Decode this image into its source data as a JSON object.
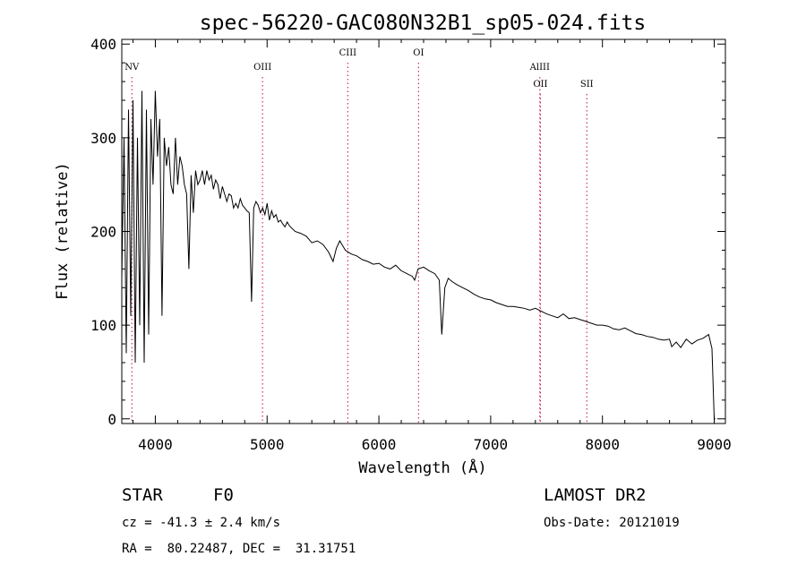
{
  "chart_data": {
    "type": "line",
    "title": "spec-56220-GAC080N32B1_sp05-024.fits",
    "xlabel": "Wavelength (Å)",
    "ylabel": "Flux (relative)",
    "xlim": [
      3700,
      9100
    ],
    "ylim": [
      -5,
      405
    ],
    "x_ticks": [
      4000,
      5000,
      6000,
      7000,
      8000,
      9000
    ],
    "y_ticks": [
      0,
      100,
      200,
      300,
      400
    ],
    "grid": false,
    "line_color": "#000000",
    "line_marker_color": "#cc3355",
    "series": [
      {
        "x": [
          3700,
          3720,
          3740,
          3760,
          3780,
          3800,
          3820,
          3840,
          3860,
          3880,
          3900,
          3920,
          3940,
          3960,
          3980,
          4000,
          4020,
          4040,
          4060,
          4080,
          4100,
          4120,
          4140,
          4160,
          4180,
          4200,
          4220,
          4240,
          4260,
          4280,
          4300,
          4320,
          4340,
          4360,
          4380,
          4400,
          4420,
          4440,
          4460,
          4480,
          4500,
          4520,
          4540,
          4560,
          4580,
          4600,
          4620,
          4640,
          4660,
          4680,
          4700,
          4720,
          4740,
          4760,
          4780,
          4800,
          4820,
          4840,
          4861,
          4880,
          4900,
          4920,
          4940,
          4960,
          4980,
          5000,
          5020,
          5040,
          5060,
          5080,
          5100,
          5120,
          5140,
          5160,
          5180,
          5200,
          5250,
          5300,
          5350,
          5400,
          5450,
          5500,
          5550,
          5590,
          5620,
          5650,
          5700,
          5750,
          5800,
          5850,
          5900,
          5950,
          6000,
          6050,
          6100,
          6150,
          6200,
          6250,
          6300,
          6320,
          6350,
          6400,
          6450,
          6500,
          6540,
          6563,
          6590,
          6620,
          6650,
          6700,
          6750,
          6800,
          6850,
          6900,
          6950,
          7000,
          7050,
          7100,
          7150,
          7200,
          7250,
          7300,
          7350,
          7400,
          7450,
          7500,
          7550,
          7600,
          7650,
          7700,
          7750,
          7800,
          7850,
          7900,
          7950,
          8000,
          8050,
          8100,
          8150,
          8200,
          8250,
          8300,
          8350,
          8400,
          8450,
          8500,
          8550,
          8600,
          8620,
          8660,
          8700,
          8750,
          8800,
          8850,
          8900,
          8950,
          8980,
          9000,
          9010
        ],
        "y": [
          150,
          300,
          70,
          330,
          110,
          340,
          60,
          300,
          100,
          350,
          60,
          330,
          90,
          320,
          250,
          350,
          280,
          320,
          110,
          300,
          270,
          290,
          250,
          240,
          300,
          250,
          280,
          270,
          250,
          240,
          160,
          260,
          220,
          265,
          250,
          255,
          265,
          250,
          265,
          255,
          260,
          245,
          255,
          250,
          235,
          248,
          240,
          232,
          240,
          238,
          225,
          230,
          225,
          235,
          228,
          225,
          222,
          220,
          125,
          225,
          232,
          228,
          220,
          225,
          218,
          230,
          212,
          222,
          215,
          218,
          210,
          212,
          208,
          205,
          210,
          206,
          200,
          198,
          195,
          188,
          190,
          186,
          178,
          168,
          182,
          190,
          180,
          176,
          174,
          170,
          168,
          165,
          166,
          162,
          160,
          164,
          158,
          155,
          152,
          148,
          160,
          162,
          158,
          155,
          148,
          90,
          140,
          150,
          147,
          143,
          140,
          137,
          133,
          130,
          128,
          127,
          124,
          122,
          120,
          120,
          119,
          118,
          116,
          118,
          115,
          112,
          110,
          108,
          112,
          107,
          108,
          106,
          104,
          102,
          100,
          100,
          99,
          96,
          95,
          97,
          94,
          91,
          90,
          88,
          87,
          85,
          84,
          85,
          77,
          82,
          76,
          85,
          80,
          84,
          86,
          90,
          75,
          0,
          0
        ]
      }
    ],
    "line_labels": [
      {
        "label": "NV",
        "x": 3790,
        "row": 1
      },
      {
        "label": "OIII",
        "x": 4959,
        "row": 1
      },
      {
        "label": "CIII",
        "x": 5722,
        "row": 0
      },
      {
        "label": "OI",
        "x": 6355,
        "row": 0
      },
      {
        "label": "AlIII",
        "x": 7440,
        "row": 1
      },
      {
        "label": "OII",
        "x": 7445,
        "row": 2
      },
      {
        "label": "SII",
        "x": 7860,
        "row": 2
      }
    ]
  },
  "info": {
    "object_class": "STAR",
    "subclass": "F0",
    "redshift": "cz = -41.3 ± 2.4 km/s",
    "coords": "RA =  80.22487, DEC =  31.31751",
    "release": "LAMOST DR2",
    "obs_date": "Obs-Date: 20121019"
  }
}
